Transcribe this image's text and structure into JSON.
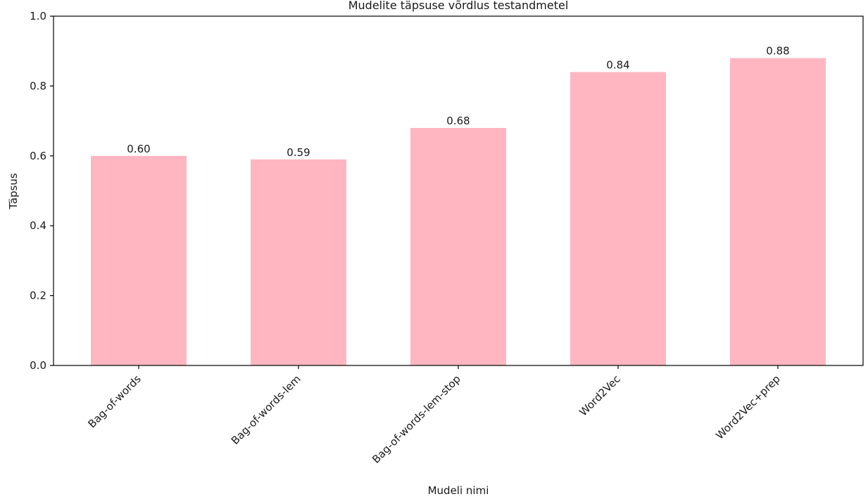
{
  "chart_data": {
    "type": "bar",
    "title": "Mudelite täpsuse võrdlus testandmetel",
    "xlabel": "Mudeli nimi",
    "ylabel": "Täpsus",
    "categories": [
      "Bag-of-words",
      "Bag-of-words-lem",
      "Bag-of-words-lem-stop",
      "Word2Vec",
      "Word2Vec+prep"
    ],
    "values": [
      0.6,
      0.59,
      0.68,
      0.84,
      0.88
    ],
    "value_labels": [
      "0.60",
      "0.59",
      "0.68",
      "0.84",
      "0.88"
    ],
    "ylim": [
      0,
      1.0
    ],
    "yticks": [
      "0.0",
      "0.2",
      "0.4",
      "0.6",
      "0.8",
      "1.0"
    ],
    "bar_color": "#ffb6c1",
    "grid": false,
    "legend": "none"
  }
}
